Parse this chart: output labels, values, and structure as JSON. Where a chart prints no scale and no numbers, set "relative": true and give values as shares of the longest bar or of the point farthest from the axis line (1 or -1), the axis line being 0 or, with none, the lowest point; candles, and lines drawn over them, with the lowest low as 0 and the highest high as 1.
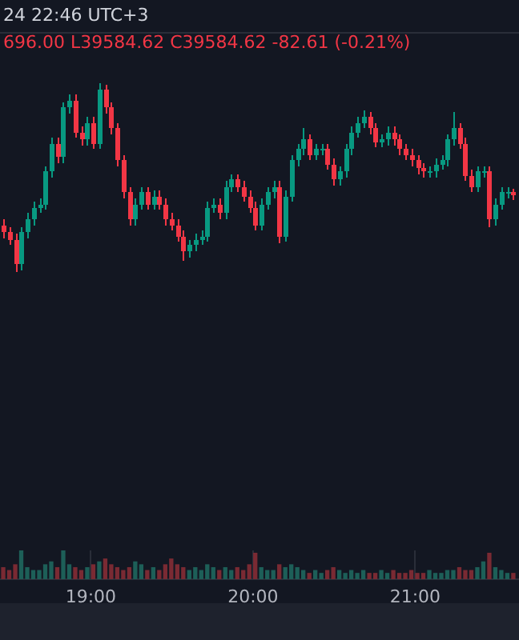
{
  "chart_data": [
    {
      "type": "candlestick",
      "relative": true,
      "tick_labels": false,
      "annotations": [
        "24 22:46 UTC+3",
        "696.00 L39584.62 C39584.62 -82.61 (-0.21%)"
      ],
      "xlim": [
        18.44,
        21.64
      ],
      "xticks": [
        {
          "value": 19,
          "label": null
        },
        {
          "value": 20,
          "label": null
        },
        {
          "value": 21,
          "label": null
        }
      ],
      "x": [
        18.46,
        18.497,
        18.534,
        18.571,
        18.608,
        18.645,
        18.682,
        18.719,
        18.756,
        18.793,
        18.83,
        18.867,
        18.904,
        18.941,
        18.978,
        19.015,
        19.052,
        19.089,
        19.126,
        19.163,
        19.2,
        19.237,
        19.274,
        19.311,
        19.348,
        19.385,
        19.422,
        19.459,
        19.496,
        19.533,
        19.57,
        19.607,
        19.644,
        19.681,
        19.718,
        19.755,
        19.792,
        19.829,
        19.866,
        19.903,
        19.94,
        19.977,
        20.014,
        20.051,
        20.088,
        20.125,
        20.162,
        20.199,
        20.236,
        20.273,
        20.31,
        20.347,
        20.384,
        20.421,
        20.458,
        20.495,
        20.532,
        20.569,
        20.606,
        20.643,
        20.68,
        20.717,
        20.754,
        20.791,
        20.828,
        20.865,
        20.902,
        20.939,
        20.976,
        21.013,
        21.05,
        21.087,
        21.124,
        21.161,
        21.198,
        21.235,
        21.272,
        21.309,
        21.346,
        21.383,
        21.42,
        21.457,
        21.494,
        21.531,
        21.568,
        21.605
      ],
      "ohlc": [
        [
          0.25,
          0.28,
          0.18,
          0.21
        ],
        [
          0.21,
          0.24,
          0.14,
          0.17
        ],
        [
          0.17,
          0.2,
          0,
          0.04
        ],
        [
          0.04,
          0.24,
          0.01,
          0.21
        ],
        [
          0.21,
          0.31,
          0.18,
          0.28
        ],
        [
          0.28,
          0.37,
          0.25,
          0.34
        ],
        [
          0.34,
          0.39,
          0.31,
          0.36
        ],
        [
          0.36,
          0.56,
          0.33,
          0.53
        ],
        [
          0.53,
          0.71,
          0.5,
          0.68
        ],
        [
          0.68,
          0.71,
          0.58,
          0.61
        ],
        [
          0.61,
          0.9,
          0.58,
          0.87
        ],
        [
          0.87,
          0.94,
          0.84,
          0.91
        ],
        [
          0.91,
          0.94,
          0.71,
          0.74
        ],
        [
          0.74,
          0.77,
          0.67,
          0.7
        ],
        [
          0.7,
          0.82,
          0.67,
          0.79
        ],
        [
          0.79,
          0.82,
          0.65,
          0.68
        ],
        [
          0.68,
          1,
          0.65,
          0.97
        ],
        [
          0.97,
          0.99,
          0.84,
          0.87
        ],
        [
          0.87,
          0.9,
          0.73,
          0.76
        ],
        [
          0.76,
          0.79,
          0.56,
          0.59
        ],
        [
          0.59,
          0.62,
          0.39,
          0.42
        ],
        [
          0.42,
          0.45,
          0.25,
          0.28
        ],
        [
          0.28,
          0.39,
          0.25,
          0.36
        ],
        [
          0.36,
          0.45,
          0.33,
          0.42
        ],
        [
          0.42,
          0.45,
          0.33,
          0.36
        ],
        [
          0.36,
          0.43,
          0.33,
          0.4
        ],
        [
          0.4,
          0.43,
          0.33,
          0.36
        ],
        [
          0.36,
          0.39,
          0.25,
          0.28
        ],
        [
          0.28,
          0.31,
          0.22,
          0.25
        ],
        [
          0.25,
          0.28,
          0.16,
          0.19
        ],
        [
          0.19,
          0.22,
          0.06,
          0.11
        ],
        [
          0.11,
          0.17,
          0.08,
          0.14
        ],
        [
          0.14,
          0.2,
          0.11,
          0.17
        ],
        [
          0.17,
          0.22,
          0.14,
          0.19
        ],
        [
          0.19,
          0.37,
          0.16,
          0.34
        ],
        [
          0.34,
          0.39,
          0.31,
          0.36
        ],
        [
          0.36,
          0.39,
          0.28,
          0.31
        ],
        [
          0.31,
          0.48,
          0.28,
          0.45
        ],
        [
          0.45,
          0.52,
          0.42,
          0.49
        ],
        [
          0.49,
          0.52,
          0.42,
          0.45
        ],
        [
          0.45,
          0.48,
          0.37,
          0.4
        ],
        [
          0.4,
          0.43,
          0.31,
          0.34
        ],
        [
          0.34,
          0.37,
          0.22,
          0.25
        ],
        [
          0.25,
          0.39,
          0.22,
          0.36
        ],
        [
          0.36,
          0.45,
          0.33,
          0.42
        ],
        [
          0.42,
          0.48,
          0.39,
          0.45
        ],
        [
          0.45,
          0.48,
          0.15,
          0.19
        ],
        [
          0.19,
          0.43,
          0.16,
          0.4
        ],
        [
          0.4,
          0.62,
          0.37,
          0.59
        ],
        [
          0.59,
          0.68,
          0.56,
          0.65
        ],
        [
          0.65,
          0.76,
          0.62,
          0.7
        ],
        [
          0.7,
          0.73,
          0.59,
          0.62
        ],
        [
          0.62,
          0.68,
          0.59,
          0.65
        ],
        [
          0.65,
          0.68,
          0.62,
          0.65
        ],
        [
          0.65,
          0.68,
          0.54,
          0.57
        ],
        [
          0.57,
          0.6,
          0.46,
          0.49
        ],
        [
          0.49,
          0.56,
          0.46,
          0.53
        ],
        [
          0.53,
          0.68,
          0.5,
          0.65
        ],
        [
          0.65,
          0.77,
          0.62,
          0.74
        ],
        [
          0.74,
          0.82,
          0.71,
          0.79
        ],
        [
          0.79,
          0.86,
          0.76,
          0.82
        ],
        [
          0.82,
          0.85,
          0.73,
          0.76
        ],
        [
          0.76,
          0.79,
          0.66,
          0.69
        ],
        [
          0.69,
          0.73,
          0.66,
          0.7
        ],
        [
          0.7,
          0.77,
          0.67,
          0.74
        ],
        [
          0.74,
          0.77,
          0.67,
          0.7
        ],
        [
          0.7,
          0.73,
          0.62,
          0.65
        ],
        [
          0.65,
          0.68,
          0.59,
          0.62
        ],
        [
          0.62,
          0.65,
          0.56,
          0.59
        ],
        [
          0.59,
          0.62,
          0.52,
          0.55
        ],
        [
          0.55,
          0.58,
          0.5,
          0.53
        ],
        [
          0.53,
          0.56,
          0.5,
          0.53
        ],
        [
          0.53,
          0.6,
          0.5,
          0.57
        ],
        [
          0.57,
          0.62,
          0.54,
          0.59
        ],
        [
          0.59,
          0.73,
          0.56,
          0.7
        ],
        [
          0.7,
          0.85,
          0.67,
          0.76
        ],
        [
          0.76,
          0.79,
          0.65,
          0.68
        ],
        [
          0.68,
          0.71,
          0.48,
          0.51
        ],
        [
          0.51,
          0.54,
          0.42,
          0.45
        ],
        [
          0.45,
          0.56,
          0.42,
          0.53
        ],
        [
          0.53,
          0.56,
          0.5,
          0.53
        ],
        [
          0.53,
          0.56,
          0.24,
          0.28
        ],
        [
          0.28,
          0.39,
          0.25,
          0.36
        ],
        [
          0.36,
          0.45,
          0.33,
          0.42
        ],
        [
          0.42,
          0.45,
          0.39,
          0.42
        ],
        [
          0.42,
          0.44,
          0.38,
          0.41
        ]
      ],
      "colors": [
        "#f23645",
        "#f23645",
        "#f23645",
        "#089981",
        "#089981",
        "#089981",
        "#089981",
        "#089981",
        "#089981",
        "#f23645",
        "#089981",
        "#089981",
        "#f23645",
        "#f23645",
        "#089981",
        "#f23645",
        "#089981",
        "#f23645",
        "#f23645",
        "#f23645",
        "#f23645",
        "#f23645",
        "#089981",
        "#089981",
        "#f23645",
        "#089981",
        "#f23645",
        "#f23645",
        "#f23645",
        "#f23645",
        "#f23645",
        "#089981",
        "#089981",
        "#089981",
        "#089981",
        "#089981",
        "#f23645",
        "#089981",
        "#089981",
        "#f23645",
        "#f23645",
        "#f23645",
        "#f23645",
        "#089981",
        "#089981",
        "#089981",
        "#f23645",
        "#089981",
        "#089981",
        "#089981",
        "#089981",
        "#f23645",
        "#089981",
        "#089981",
        "#f23645",
        "#f23645",
        "#089981",
        "#089981",
        "#089981",
        "#089981",
        "#089981",
        "#f23645",
        "#f23645",
        "#089981",
        "#089981",
        "#f23645",
        "#f23645",
        "#f23645",
        "#f23645",
        "#f23645",
        "#f23645",
        "#089981",
        "#089981",
        "#089981",
        "#089981",
        "#089981",
        "#f23645",
        "#f23645",
        "#f23645",
        "#089981",
        "#089981",
        "#f23645",
        "#089981",
        "#089981",
        "#089981",
        "#f23645"
      ]
    },
    {
      "type": "bar",
      "relative": true,
      "grid": "x",
      "xlim": [
        18.44,
        21.64
      ],
      "xticks": [
        {
          "value": 19,
          "label": "19:00"
        },
        {
          "value": 20,
          "label": "20:00"
        },
        {
          "value": 21,
          "label": "21:00"
        }
      ],
      "x": [
        18.46,
        18.497,
        18.534,
        18.571,
        18.608,
        18.645,
        18.682,
        18.719,
        18.756,
        18.793,
        18.83,
        18.867,
        18.904,
        18.941,
        18.978,
        19.015,
        19.052,
        19.089,
        19.126,
        19.163,
        19.2,
        19.237,
        19.274,
        19.311,
        19.348,
        19.385,
        19.422,
        19.459,
        19.496,
        19.533,
        19.57,
        19.607,
        19.644,
        19.681,
        19.718,
        19.755,
        19.792,
        19.829,
        19.866,
        19.903,
        19.94,
        19.977,
        20.014,
        20.051,
        20.088,
        20.125,
        20.162,
        20.199,
        20.236,
        20.273,
        20.31,
        20.347,
        20.384,
        20.421,
        20.458,
        20.495,
        20.532,
        20.569,
        20.606,
        20.643,
        20.68,
        20.717,
        20.754,
        20.791,
        20.828,
        20.865,
        20.902,
        20.939,
        20.976,
        21.013,
        21.05,
        21.087,
        21.124,
        21.161,
        21.198,
        21.235,
        21.272,
        21.309,
        21.346,
        21.383,
        21.42,
        21.457,
        21.494,
        21.531,
        21.568,
        21.605
      ],
      "values": [
        0.4,
        0.3,
        0.5,
        1,
        0.4,
        0.3,
        0.3,
        0.5,
        0.6,
        0.4,
        1,
        0.5,
        0.4,
        0.3,
        0.4,
        0.5,
        0.6,
        0.7,
        0.5,
        0.4,
        0.3,
        0.4,
        0.6,
        0.5,
        0.3,
        0.4,
        0.3,
        0.5,
        0.7,
        0.5,
        0.4,
        0.3,
        0.4,
        0.3,
        0.5,
        0.4,
        0.3,
        0.4,
        0.3,
        0.4,
        0.3,
        0.5,
        0.9,
        0.4,
        0.3,
        0.3,
        0.5,
        0.4,
        0.5,
        0.4,
        0.3,
        0.2,
        0.3,
        0.2,
        0.3,
        0.4,
        0.3,
        0.2,
        0.3,
        0.2,
        0.3,
        0.2,
        0.2,
        0.3,
        0.2,
        0.3,
        0.2,
        0.2,
        0.3,
        0.2,
        0.2,
        0.3,
        0.2,
        0.2,
        0.3,
        0.3,
        0.4,
        0.3,
        0.3,
        0.4,
        0.6,
        0.9,
        0.4,
        0.3,
        0.2,
        0.2
      ],
      "colors": [
        "#7a2a33",
        "#7a2a33",
        "#7a2a33",
        "#1d5f58",
        "#1d5f58",
        "#1d5f58",
        "#1d5f58",
        "#1d5f58",
        "#1d5f58",
        "#7a2a33",
        "#1d5f58",
        "#1d5f58",
        "#7a2a33",
        "#7a2a33",
        "#1d5f58",
        "#7a2a33",
        "#1d5f58",
        "#7a2a33",
        "#7a2a33",
        "#7a2a33",
        "#7a2a33",
        "#7a2a33",
        "#1d5f58",
        "#1d5f58",
        "#7a2a33",
        "#1d5f58",
        "#7a2a33",
        "#7a2a33",
        "#7a2a33",
        "#7a2a33",
        "#7a2a33",
        "#1d5f58",
        "#1d5f58",
        "#1d5f58",
        "#1d5f58",
        "#1d5f58",
        "#7a2a33",
        "#1d5f58",
        "#1d5f58",
        "#7a2a33",
        "#7a2a33",
        "#7a2a33",
        "#7a2a33",
        "#1d5f58",
        "#1d5f58",
        "#1d5f58",
        "#7a2a33",
        "#1d5f58",
        "#1d5f58",
        "#1d5f58",
        "#1d5f58",
        "#7a2a33",
        "#1d5f58",
        "#1d5f58",
        "#7a2a33",
        "#7a2a33",
        "#1d5f58",
        "#1d5f58",
        "#1d5f58",
        "#1d5f58",
        "#1d5f58",
        "#7a2a33",
        "#7a2a33",
        "#1d5f58",
        "#1d5f58",
        "#7a2a33",
        "#7a2a33",
        "#7a2a33",
        "#7a2a33",
        "#7a2a33",
        "#7a2a33",
        "#1d5f58",
        "#1d5f58",
        "#1d5f58",
        "#1d5f58",
        "#1d5f58",
        "#7a2a33",
        "#7a2a33",
        "#7a2a33",
        "#1d5f58",
        "#1d5f58",
        "#7a2a33",
        "#1d5f58",
        "#1d5f58",
        "#1d5f58",
        "#7a2a33"
      ]
    }
  ]
}
